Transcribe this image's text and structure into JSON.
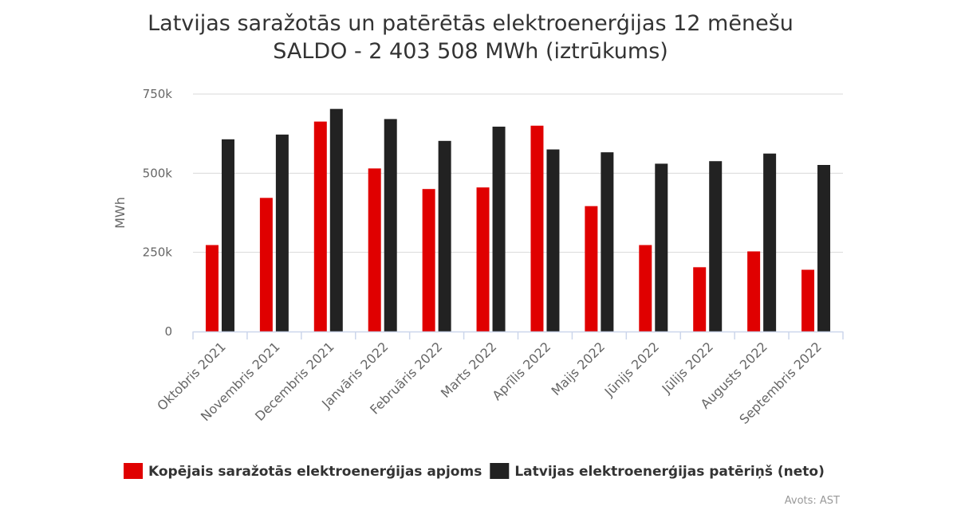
{
  "chart_data": {
    "type": "bar",
    "title_lines": [
      "Latvijas saražotās un patērētās elektroenerģijas 12 mēnešu",
      "SALDO - 2 403 508 MWh (iztrūkums)"
    ],
    "ylabel": "MWh",
    "ylim": [
      0,
      750000
    ],
    "yticks": [
      0,
      250000,
      500000,
      750000
    ],
    "ytick_labels": [
      "0",
      "250k",
      "500k",
      "750k"
    ],
    "grid": true,
    "legend_position": "bottom",
    "categories": [
      "Oktobris 2021",
      "Novembris 2021",
      "Decembris 2021",
      "Janvāris 2022",
      "Februāris 2022",
      "Marts 2022",
      "Aprīlis 2022",
      "Maijs 2022",
      "Jūnijs 2022",
      "Jūlijs 2022",
      "Augusts 2022",
      "Septembris 2022"
    ],
    "series": [
      {
        "name": "Kopējais saražotās elektroenerģijas apjoms",
        "color": "#e00000",
        "values": [
          273000,
          422000,
          663000,
          515000,
          450000,
          455000,
          650000,
          396000,
          273000,
          203000,
          253000,
          195000
        ]
      },
      {
        "name": "Latvijas elektroenerģijas patēriņš (neto)",
        "color": "#222222",
        "values": [
          607000,
          622000,
          703000,
          671000,
          602000,
          647000,
          575000,
          566000,
          530000,
          538000,
          562000,
          526000
        ]
      }
    ],
    "credits": "Avots: AST"
  }
}
